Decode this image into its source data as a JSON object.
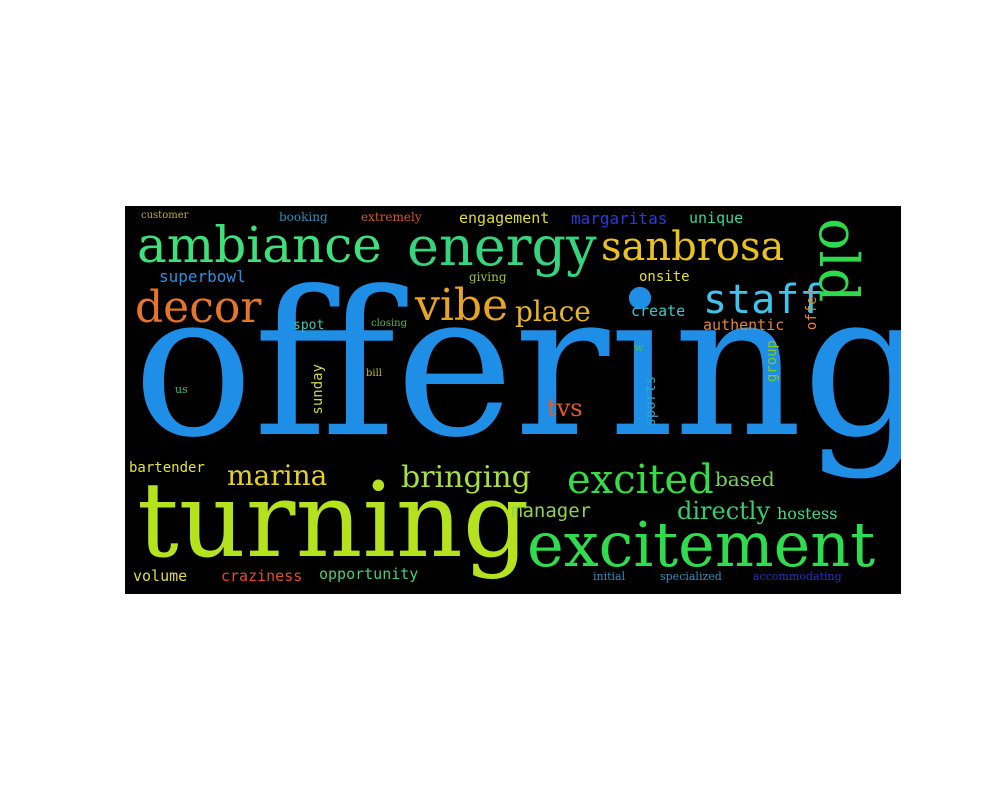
{
  "background": "#000000",
  "words": [
    {
      "text": "offering",
      "color": "#1e8ee6"
    },
    {
      "text": "turning",
      "color": "#b5e21e"
    },
    {
      "text": "excitement",
      "color": "#2fdc4e"
    },
    {
      "text": "ambiance",
      "color": "#3fe07a"
    },
    {
      "text": "energy",
      "color": "#34d57e"
    },
    {
      "text": "sanbrosa",
      "color": "#e8c21f"
    },
    {
      "text": "old",
      "color": "#2ed94c"
    },
    {
      "text": "decor",
      "color": "#e4752a"
    },
    {
      "text": "vibe",
      "color": "#e8a524"
    },
    {
      "text": "staff",
      "color": "#3ec4ee"
    },
    {
      "text": "place",
      "color": "#e8b423"
    },
    {
      "text": "excited",
      "color": "#34dc45"
    },
    {
      "text": "marina",
      "color": "#e6d023"
    },
    {
      "text": "bringing",
      "color": "#a8e03a"
    },
    {
      "text": "tvs",
      "color": "#e25b26"
    },
    {
      "text": "directly",
      "color": "#33cf6e"
    },
    {
      "text": "manager",
      "color": "#8fd44c"
    },
    {
      "text": "based",
      "color": "#79d35c"
    },
    {
      "text": "hostess",
      "color": "#3fdc86"
    },
    {
      "text": "superbowl",
      "color": "#2d8ee0"
    },
    {
      "text": "engagement",
      "color": "#e1dc2f"
    },
    {
      "text": "margaritas",
      "color": "#2b3ae0"
    },
    {
      "text": "unique",
      "color": "#2fd7a4"
    },
    {
      "text": "onsite",
      "color": "#e8df2a"
    },
    {
      "text": "create",
      "color": "#36c8cf"
    },
    {
      "text": "authentic",
      "color": "#e9832b"
    },
    {
      "text": "offer",
      "color": "#e7861f"
    },
    {
      "text": "group",
      "color": "#7ec92e"
    },
    {
      "text": "sunday",
      "color": "#cfd63a"
    },
    {
      "text": "sports",
      "color": "#2aa6c8"
    },
    {
      "text": "spot",
      "color": "#3fc7b6"
    },
    {
      "text": "bartender",
      "color": "#e3e33b"
    },
    {
      "text": "volume",
      "color": "#ded94a"
    },
    {
      "text": "craziness",
      "color": "#e24c2a"
    },
    {
      "text": "opportunity",
      "color": "#47cf6d"
    },
    {
      "text": "customer",
      "color": "#bcb12a"
    },
    {
      "text": "booking",
      "color": "#2c8fba"
    },
    {
      "text": "extremely",
      "color": "#d9541f"
    },
    {
      "text": "giving",
      "color": "#a8bf3a"
    },
    {
      "text": "closing",
      "color": "#5aba3e"
    },
    {
      "text": "bill",
      "color": "#c2bb2c"
    },
    {
      "text": "us",
      "color": "#3dbf6c"
    },
    {
      "text": "w",
      "color": "#4cbf45"
    },
    {
      "text": "initial",
      "color": "#2a8cbf"
    },
    {
      "text": "specialized",
      "color": "#2f8fc0"
    },
    {
      "text": "accommodating",
      "color": "#2432c6"
    }
  ]
}
